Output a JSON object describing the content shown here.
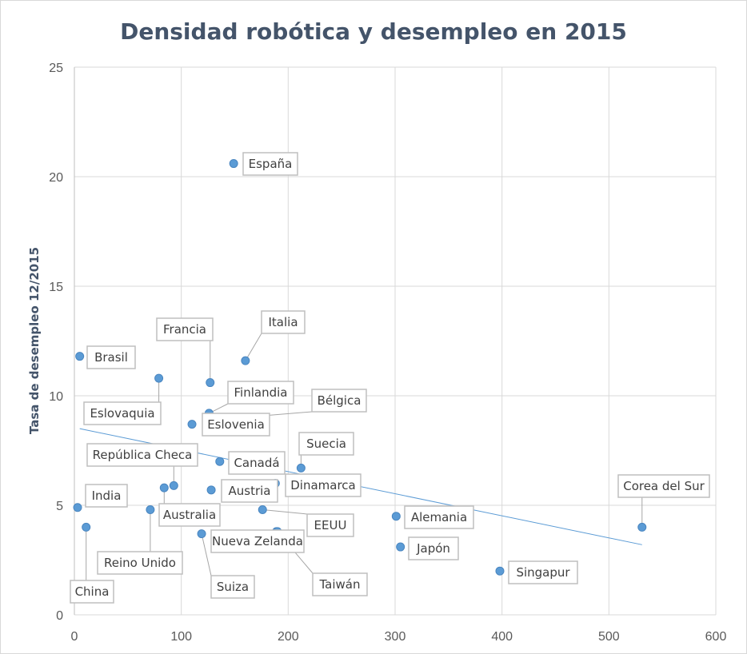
{
  "chart_data": {
    "type": "scatter",
    "title": "Densidad robótica y desempleo en 2015",
    "xlabel": "",
    "ylabel": "Tasa de desempleo 12/2015",
    "xlim": [
      0,
      600
    ],
    "ylim": [
      0,
      25
    ],
    "x_ticks": [
      "0",
      "100",
      "200",
      "300",
      "400",
      "500",
      "600"
    ],
    "y_ticks": [
      "0",
      "5",
      "10",
      "15",
      "20",
      "25"
    ],
    "grid": true,
    "legend": "none",
    "marker_color": "#5b9bd5",
    "trendline": {
      "type": "linear",
      "x": [
        5,
        531
      ],
      "y": [
        8.5,
        3.2
      ],
      "color": "#5b9bd5"
    },
    "points": [
      {
        "label": "España",
        "x": 149,
        "y": 20.6
      },
      {
        "label": "Italia",
        "x": 160,
        "y": 11.6
      },
      {
        "label": "Francia",
        "x": 127,
        "y": 10.6
      },
      {
        "label": "Brasil",
        "x": 5,
        "y": 11.8
      },
      {
        "label": "Eslovaquia",
        "x": 79,
        "y": 10.8
      },
      {
        "label": "Finlandia",
        "x": 126,
        "y": 9.2
      },
      {
        "label": "Eslovenia",
        "x": 110,
        "y": 8.7
      },
      {
        "label": "Bélgica",
        "x": 130,
        "y": 8.9
      },
      {
        "label": "Suecia",
        "x": 212,
        "y": 6.7
      },
      {
        "label": "Canadá",
        "x": 136,
        "y": 7.0
      },
      {
        "label": "República Checa",
        "x": 93,
        "y": 5.9
      },
      {
        "label": "Dinamarca",
        "x": 188,
        "y": 6.0
      },
      {
        "label": "Austria",
        "x": 128,
        "y": 5.7
      },
      {
        "label": "India",
        "x": 3,
        "y": 4.9
      },
      {
        "label": "Australia",
        "x": 84,
        "y": 5.8
      },
      {
        "label": "EEUU",
        "x": 176,
        "y": 4.8
      },
      {
        "label": "Alemania",
        "x": 301,
        "y": 4.5
      },
      {
        "label": "Corea del Sur",
        "x": 531,
        "y": 4.0
      },
      {
        "label": "China",
        "x": 11,
        "y": 4.0
      },
      {
        "label": "Reino Unido",
        "x": 71,
        "y": 4.8
      },
      {
        "label": "Nueva Zelanda",
        "x": 189,
        "y": 3.8
      },
      {
        "label": "Suiza",
        "x": 119,
        "y": 3.7
      },
      {
        "label": "Japón",
        "x": 305,
        "y": 3.1
      },
      {
        "label": "Taiwán",
        "x": 190,
        "y": 3.8
      },
      {
        "label": "Singapur",
        "x": 398,
        "y": 2.0
      }
    ]
  }
}
